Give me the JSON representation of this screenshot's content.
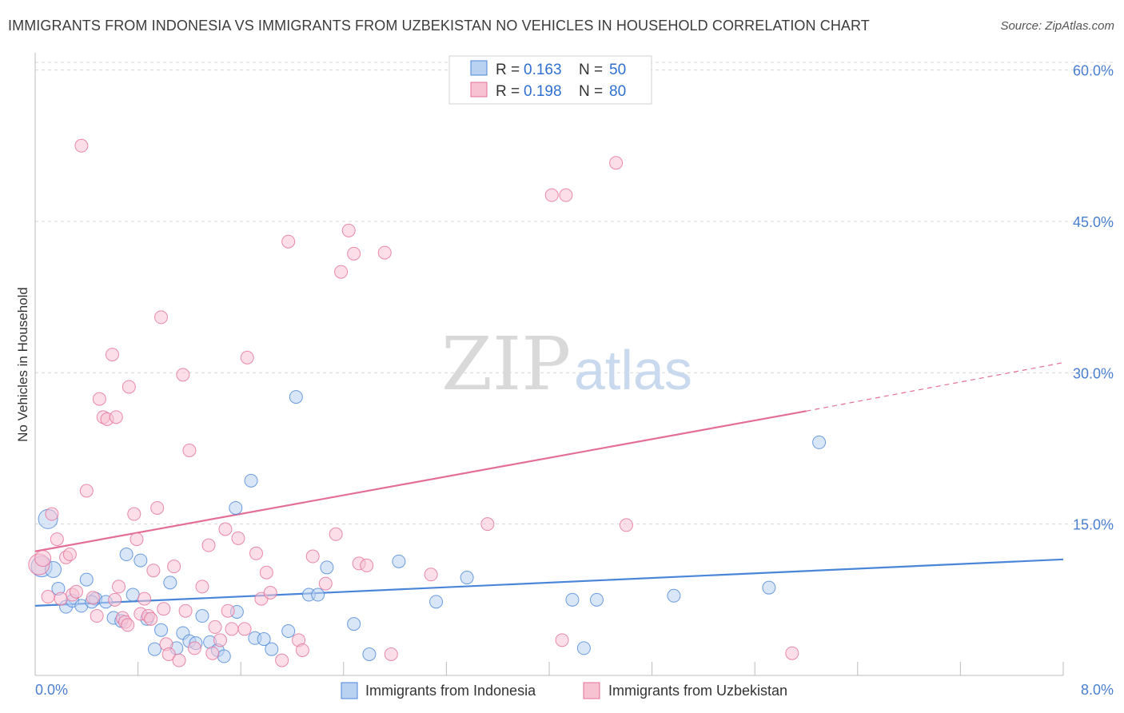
{
  "title": "IMMIGRANTS FROM INDONESIA VS IMMIGRANTS FROM UZBEKISTAN NO VEHICLES IN HOUSEHOLD CORRELATION CHART",
  "source": "Source: ZipAtlas.com",
  "watermark": {
    "zip": "ZIP",
    "atlas": "atlas"
  },
  "colors": {
    "blue": "#4a86d8",
    "blue_fill": "#b9d2f2",
    "pink": "#e36f98",
    "pink_fill": "#f7c3d3",
    "axis_text": "#4a7fd0"
  },
  "legend": {
    "entries": [
      {
        "r_label": "R =",
        "r_value": "0.163",
        "n_label": "N =",
        "n_value": "50"
      },
      {
        "r_label": "R =",
        "r_value": "0.198",
        "n_label": "N =",
        "n_value": "80"
      }
    ]
  },
  "bottom_legend": [
    "Immigrants from Indonesia",
    "Immigrants from Uzbekistan"
  ],
  "chart_data": {
    "type": "scatter",
    "title": "IMMIGRANTS FROM INDONESIA VS IMMIGRANTS FROM UZBEKISTAN NO VEHICLES IN HOUSEHOLD CORRELATION CHART",
    "xlabel": "",
    "ylabel": "No Vehicles in Household",
    "xlim": [
      0,
      8
    ],
    "ylim": [
      0,
      61
    ],
    "x_tick_labels": [
      "0.0%",
      "8.0%"
    ],
    "y_ticks": [
      15,
      30,
      45,
      60
    ],
    "y_tick_labels": [
      "15.0%",
      "30.0%",
      "45.0%",
      "60.0%"
    ],
    "grid": true,
    "legend_position": "top-center",
    "series": [
      {
        "name": "Immigrants from Indonesia",
        "color": "#4a86d8",
        "trend": {
          "x0": 0,
          "y0": 6.9,
          "x1": 8,
          "y1": 11.5
        },
        "points": [
          [
            0.05,
            10.8,
            12
          ],
          [
            0.1,
            15.5,
            11
          ],
          [
            0.14,
            10.5,
            9
          ],
          [
            0.18,
            8.6,
            7
          ],
          [
            0.24,
            6.8,
            7
          ],
          [
            0.29,
            7.4,
            7
          ],
          [
            0.36,
            6.9,
            7
          ],
          [
            0.4,
            9.5,
            7
          ],
          [
            0.47,
            7.6,
            7
          ],
          [
            0.55,
            7.3,
            7
          ],
          [
            0.61,
            5.7,
            7
          ],
          [
            0.67,
            5.4,
            7
          ],
          [
            0.71,
            12.0,
            7
          ],
          [
            0.76,
            8.0,
            7
          ],
          [
            0.82,
            11.4,
            7
          ],
          [
            0.87,
            5.6,
            7
          ],
          [
            0.93,
            2.6,
            7
          ],
          [
            0.98,
            4.5,
            7
          ],
          [
            1.05,
            9.2,
            7
          ],
          [
            1.1,
            2.7,
            7
          ],
          [
            1.15,
            4.2,
            7
          ],
          [
            1.2,
            3.4,
            7
          ],
          [
            1.25,
            3.2,
            7
          ],
          [
            1.3,
            5.9,
            7
          ],
          [
            1.36,
            3.3,
            7
          ],
          [
            1.42,
            2.5,
            7
          ],
          [
            1.47,
            1.9,
            7
          ],
          [
            1.56,
            16.6,
            7
          ],
          [
            1.57,
            6.3,
            7
          ],
          [
            1.68,
            19.3,
            7
          ],
          [
            1.71,
            3.7,
            7
          ],
          [
            1.78,
            3.6,
            7
          ],
          [
            1.84,
            2.6,
            7
          ],
          [
            1.97,
            4.4,
            7
          ],
          [
            2.03,
            27.6,
            7
          ],
          [
            2.13,
            8.0,
            7
          ],
          [
            2.2,
            8.0,
            7
          ],
          [
            2.27,
            10.7,
            7
          ],
          [
            2.48,
            5.1,
            7
          ],
          [
            2.6,
            2.1,
            7
          ],
          [
            2.83,
            11.3,
            7
          ],
          [
            3.12,
            7.3,
            7
          ],
          [
            3.36,
            9.7,
            7
          ],
          [
            4.18,
            7.5,
            7
          ],
          [
            4.27,
            2.7,
            7
          ],
          [
            4.37,
            7.5,
            7
          ],
          [
            4.97,
            7.9,
            7
          ],
          [
            5.71,
            8.7,
            7
          ],
          [
            6.1,
            23.1,
            7
          ],
          [
            0.44,
            7.3,
            7
          ]
        ]
      },
      {
        "name": "Immigrants from Uzbekistan",
        "color": "#e36f98",
        "trend": {
          "x0": 0,
          "y0": 12.3,
          "x1": 6.0,
          "y1": 26.2
        },
        "trend_dashed": {
          "x0": 6.0,
          "y0": 26.2,
          "x1": 8,
          "y1": 31.0
        },
        "points": [
          [
            0.03,
            11.0,
            12
          ],
          [
            0.06,
            11.6,
            9
          ],
          [
            0.1,
            7.8,
            7
          ],
          [
            0.13,
            16.0,
            7
          ],
          [
            0.17,
            13.5,
            7
          ],
          [
            0.2,
            7.6,
            7
          ],
          [
            0.24,
            11.7,
            7
          ],
          [
            0.27,
            12.0,
            7
          ],
          [
            0.29,
            8.0,
            7
          ],
          [
            0.32,
            8.3,
            7
          ],
          [
            0.36,
            52.5,
            7
          ],
          [
            0.4,
            18.3,
            7
          ],
          [
            0.45,
            7.7,
            7
          ],
          [
            0.48,
            5.9,
            7
          ],
          [
            0.5,
            27.4,
            7
          ],
          [
            0.53,
            25.6,
            7
          ],
          [
            0.56,
            25.4,
            7
          ],
          [
            0.6,
            31.8,
            7
          ],
          [
            0.62,
            7.5,
            7
          ],
          [
            0.63,
            25.6,
            7
          ],
          [
            0.65,
            8.8,
            7
          ],
          [
            0.68,
            5.7,
            7
          ],
          [
            0.7,
            5.3,
            7
          ],
          [
            0.72,
            5.0,
            7
          ],
          [
            0.73,
            28.6,
            7
          ],
          [
            0.77,
            16.0,
            7
          ],
          [
            0.79,
            13.5,
            7
          ],
          [
            0.82,
            6.1,
            7
          ],
          [
            0.85,
            7.6,
            7
          ],
          [
            0.88,
            5.9,
            7
          ],
          [
            0.9,
            5.6,
            7
          ],
          [
            0.92,
            10.4,
            7
          ],
          [
            0.95,
            16.6,
            7
          ],
          [
            0.98,
            35.5,
            7
          ],
          [
            1.0,
            6.6,
            7
          ],
          [
            1.02,
            3.1,
            7
          ],
          [
            1.04,
            2.1,
            7
          ],
          [
            1.08,
            10.8,
            7
          ],
          [
            1.12,
            1.5,
            7
          ],
          [
            1.15,
            29.8,
            7
          ],
          [
            1.17,
            6.4,
            7
          ],
          [
            1.2,
            22.3,
            7
          ],
          [
            1.24,
            2.7,
            7
          ],
          [
            1.3,
            8.8,
            7
          ],
          [
            1.35,
            12.9,
            7
          ],
          [
            1.38,
            2.2,
            7
          ],
          [
            1.4,
            4.8,
            7
          ],
          [
            1.44,
            3.5,
            7
          ],
          [
            1.48,
            14.5,
            7
          ],
          [
            1.5,
            6.4,
            7
          ],
          [
            1.53,
            4.6,
            7
          ],
          [
            1.58,
            13.6,
            7
          ],
          [
            1.63,
            4.6,
            7
          ],
          [
            1.65,
            31.5,
            7
          ],
          [
            1.72,
            12.1,
            7
          ],
          [
            1.76,
            7.6,
            7
          ],
          [
            1.8,
            10.2,
            7
          ],
          [
            1.83,
            8.2,
            7
          ],
          [
            1.92,
            1.5,
            7
          ],
          [
            1.97,
            43.0,
            7
          ],
          [
            2.05,
            3.5,
            7
          ],
          [
            2.08,
            2.5,
            7
          ],
          [
            2.16,
            11.8,
            7
          ],
          [
            2.26,
            9.1,
            7
          ],
          [
            2.34,
            14.0,
            7
          ],
          [
            2.38,
            40.0,
            7
          ],
          [
            2.44,
            44.1,
            7
          ],
          [
            2.48,
            41.8,
            7
          ],
          [
            2.52,
            11.1,
            7
          ],
          [
            2.58,
            10.9,
            7
          ],
          [
            2.72,
            41.9,
            7
          ],
          [
            2.77,
            2.1,
            7
          ],
          [
            3.08,
            10.0,
            7
          ],
          [
            3.52,
            15.0,
            7
          ],
          [
            4.02,
            47.6,
            7
          ],
          [
            4.1,
            3.5,
            7
          ],
          [
            4.13,
            47.6,
            7
          ],
          [
            4.52,
            50.8,
            7
          ],
          [
            4.6,
            14.9,
            7
          ],
          [
            5.89,
            2.2,
            7
          ]
        ]
      }
    ]
  }
}
